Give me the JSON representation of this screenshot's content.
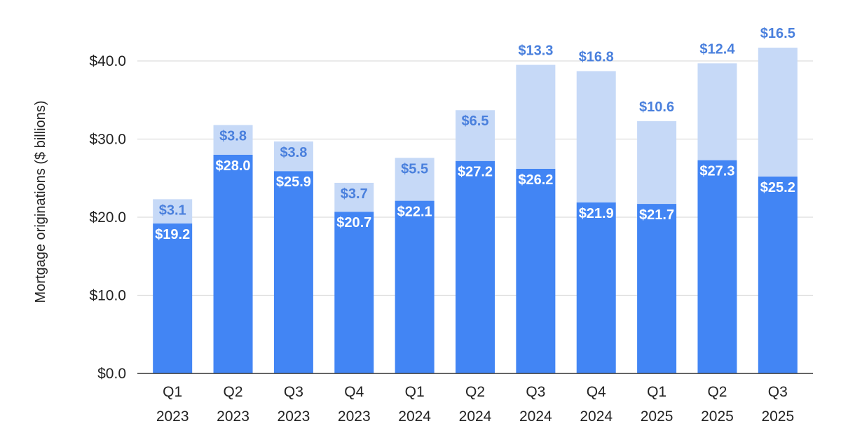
{
  "chart_data": {
    "type": "bar",
    "stacked": true,
    "title": "",
    "xlabel": "",
    "ylabel": "Mortgage originations ($ billions)",
    "ylim": [
      0,
      40
    ],
    "yticks": [
      "$0.0",
      "$10.0",
      "$20.0",
      "$30.0",
      "$40.0"
    ],
    "grid": true,
    "categories": [
      [
        "Q1",
        "2023"
      ],
      [
        "Q2",
        "2023"
      ],
      [
        "Q3",
        "2023"
      ],
      [
        "Q4",
        "2023"
      ],
      [
        "Q1",
        "2024"
      ],
      [
        "Q2",
        "2024"
      ],
      [
        "Q3",
        "2024"
      ],
      [
        "Q4",
        "2024"
      ],
      [
        "Q1",
        "2025"
      ],
      [
        "Q2",
        "2025"
      ],
      [
        "Q3",
        "2025"
      ]
    ],
    "series": [
      {
        "values": [
          19.2,
          28.0,
          25.9,
          20.7,
          22.1,
          27.2,
          26.2,
          21.9,
          21.7,
          27.3,
          25.2
        ],
        "labels": [
          "$19.2",
          "$28.0",
          "$25.9",
          "$20.7",
          "$22.1",
          "$27.2",
          "$26.2",
          "$21.9",
          "$21.7",
          "$27.3",
          "$25.2"
        ],
        "color": "#4285f4"
      },
      {
        "values": [
          3.1,
          3.8,
          3.8,
          3.7,
          5.5,
          6.5,
          13.3,
          16.8,
          10.6,
          12.4,
          16.5
        ],
        "labels": [
          "$3.1",
          "$3.8",
          "$3.8",
          "$3.7",
          "$5.5",
          "$6.5",
          "$13.3",
          "$16.8",
          "$10.6",
          "$12.4",
          "$16.5"
        ],
        "color": "#c6d9f7",
        "label_color": "#4a80dd"
      }
    ]
  }
}
